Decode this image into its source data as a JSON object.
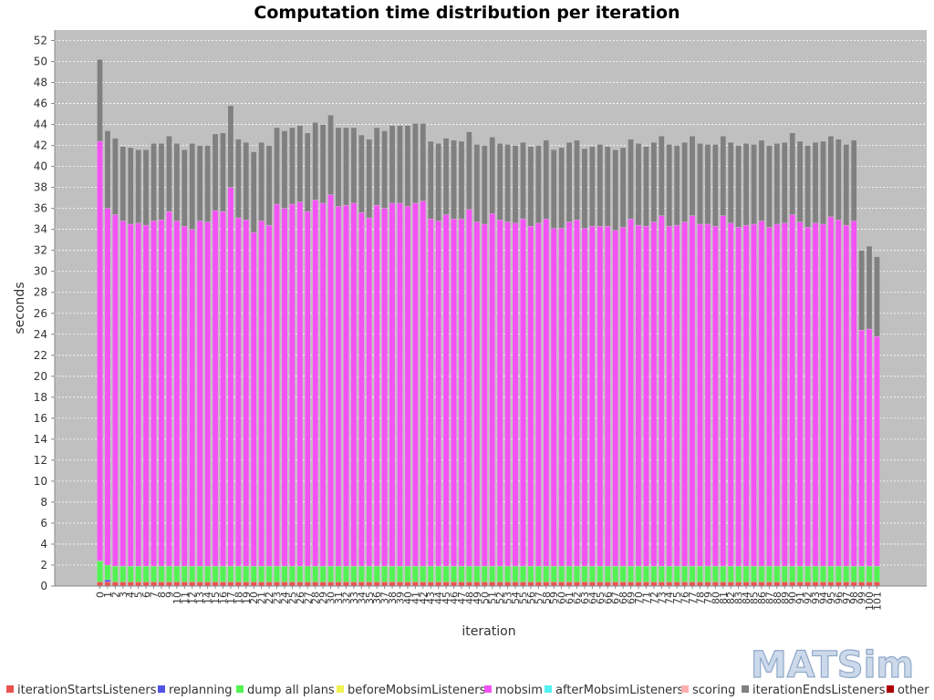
{
  "chart_data": {
    "type": "bar",
    "stacked": true,
    "title": "Computation time distribution per iteration",
    "xlabel": "iteration",
    "ylabel": "seconds",
    "ylim": [
      0,
      53
    ],
    "yticks": [
      0,
      2,
      4,
      6,
      8,
      10,
      12,
      14,
      16,
      18,
      20,
      22,
      24,
      26,
      28,
      30,
      32,
      34,
      36,
      38,
      40,
      42,
      44,
      46,
      48,
      50,
      52
    ],
    "grid": true,
    "legend_position": "bottom",
    "logo": "MATSim",
    "categories": [
      "0",
      "1",
      "2",
      "3",
      "4",
      "5",
      "6",
      "7",
      "8",
      "9",
      "10",
      "11",
      "12",
      "13",
      "14",
      "15",
      "16",
      "17",
      "18",
      "19",
      "20",
      "21",
      "22",
      "23",
      "24",
      "25",
      "26",
      "27",
      "28",
      "29",
      "30",
      "31",
      "32",
      "33",
      "34",
      "35",
      "36",
      "37",
      "38",
      "39",
      "40",
      "41",
      "42",
      "43",
      "44",
      "45",
      "46",
      "47",
      "48",
      "49",
      "50",
      "51",
      "52",
      "53",
      "54",
      "55",
      "56",
      "57",
      "58",
      "59",
      "60",
      "61",
      "62",
      "63",
      "64",
      "65",
      "66",
      "67",
      "68",
      "69",
      "70",
      "71",
      "72",
      "73",
      "74",
      "75",
      "76",
      "77",
      "78",
      "79",
      "80",
      "81",
      "82",
      "83",
      "84",
      "85",
      "86",
      "87",
      "88",
      "89",
      "90",
      "91",
      "92",
      "93",
      "94",
      "95",
      "96",
      "97",
      "98",
      "99",
      "100",
      "101"
    ],
    "series": [
      {
        "name": "iterationStartsListeners",
        "color": "#e8534f",
        "values": [
          0.4,
          0.4,
          0.4,
          0.4,
          0.4,
          0.4,
          0.4,
          0.4,
          0.4,
          0.4,
          0.4,
          0.4,
          0.4,
          0.4,
          0.4,
          0.4,
          0.4,
          0.4,
          0.4,
          0.4,
          0.4,
          0.4,
          0.4,
          0.4,
          0.4,
          0.4,
          0.4,
          0.4,
          0.4,
          0.4,
          0.4,
          0.4,
          0.4,
          0.4,
          0.4,
          0.4,
          0.4,
          0.4,
          0.4,
          0.4,
          0.4,
          0.4,
          0.4,
          0.4,
          0.4,
          0.4,
          0.4,
          0.4,
          0.4,
          0.4,
          0.4,
          0.4,
          0.4,
          0.4,
          0.4,
          0.4,
          0.4,
          0.4,
          0.4,
          0.4,
          0.4,
          0.4,
          0.4,
          0.4,
          0.4,
          0.4,
          0.4,
          0.4,
          0.4,
          0.4,
          0.4,
          0.4,
          0.4,
          0.4,
          0.4,
          0.4,
          0.4,
          0.4,
          0.4,
          0.4,
          0.4,
          0.4,
          0.4,
          0.4,
          0.4,
          0.4,
          0.4,
          0.4,
          0.4,
          0.4,
          0.4,
          0.4,
          0.4,
          0.4,
          0.4,
          0.4,
          0.4,
          0.4,
          0.4,
          0.4,
          0.4,
          0.4
        ]
      },
      {
        "name": "replanning",
        "color": "#5353e8",
        "values": [
          0,
          0.2,
          0,
          0,
          0,
          0,
          0,
          0,
          0,
          0,
          0,
          0,
          0,
          0,
          0,
          0,
          0,
          0,
          0,
          0,
          0,
          0,
          0,
          0,
          0,
          0,
          0,
          0,
          0,
          0,
          0,
          0,
          0,
          0,
          0,
          0,
          0,
          0,
          0,
          0,
          0,
          0,
          0,
          0,
          0,
          0,
          0,
          0,
          0,
          0,
          0,
          0,
          0,
          0,
          0,
          0,
          0,
          0,
          0,
          0,
          0,
          0,
          0,
          0,
          0,
          0,
          0,
          0,
          0,
          0,
          0,
          0,
          0,
          0,
          0,
          0,
          0,
          0,
          0,
          0,
          0,
          0,
          0,
          0,
          0,
          0,
          0,
          0,
          0,
          0,
          0,
          0,
          0,
          0,
          0,
          0,
          0,
          0,
          0,
          0,
          0,
          0
        ]
      },
      {
        "name": "dump all plans",
        "color": "#53f253",
        "values": [
          2.0,
          1.4,
          1.5,
          1.5,
          1.5,
          1.5,
          1.5,
          1.5,
          1.5,
          1.5,
          1.5,
          1.5,
          1.5,
          1.5,
          1.5,
          1.5,
          1.5,
          1.5,
          1.5,
          1.5,
          1.5,
          1.5,
          1.5,
          1.5,
          1.5,
          1.5,
          1.5,
          1.5,
          1.5,
          1.5,
          1.5,
          1.5,
          1.5,
          1.5,
          1.5,
          1.5,
          1.5,
          1.5,
          1.5,
          1.5,
          1.5,
          1.5,
          1.5,
          1.5,
          1.5,
          1.5,
          1.5,
          1.5,
          1.5,
          1.5,
          1.5,
          1.5,
          1.5,
          1.5,
          1.5,
          1.5,
          1.5,
          1.5,
          1.5,
          1.5,
          1.5,
          1.5,
          1.5,
          1.5,
          1.5,
          1.5,
          1.5,
          1.5,
          1.5,
          1.5,
          1.5,
          1.5,
          1.5,
          1.5,
          1.5,
          1.5,
          1.5,
          1.5,
          1.5,
          1.5,
          1.5,
          1.5,
          1.5,
          1.5,
          1.5,
          1.5,
          1.5,
          1.5,
          1.5,
          1.5,
          1.5,
          1.5,
          1.5,
          1.5,
          1.5,
          1.5,
          1.5,
          1.5,
          1.5,
          1.5,
          1.5,
          1.5
        ]
      },
      {
        "name": "beforeMobsimListeners",
        "color": "#f2f253",
        "values": [
          0,
          0,
          0,
          0,
          0,
          0,
          0,
          0,
          0,
          0,
          0,
          0,
          0,
          0,
          0,
          0,
          0,
          0,
          0,
          0,
          0,
          0,
          0,
          0,
          0,
          0,
          0,
          0,
          0,
          0,
          0,
          0,
          0,
          0,
          0,
          0,
          0,
          0,
          0,
          0,
          0,
          0,
          0,
          0,
          0,
          0,
          0,
          0,
          0,
          0,
          0,
          0,
          0,
          0,
          0,
          0,
          0,
          0,
          0,
          0,
          0,
          0,
          0,
          0,
          0,
          0,
          0,
          0,
          0,
          0,
          0,
          0,
          0,
          0,
          0,
          0,
          0,
          0,
          0,
          0,
          0,
          0,
          0,
          0,
          0,
          0,
          0,
          0,
          0,
          0,
          0,
          0,
          0,
          0,
          0,
          0,
          0,
          0,
          0,
          0,
          0,
          0
        ]
      },
      {
        "name": "mobsim",
        "color": "#f253f2",
        "values": [
          40.0,
          34.0,
          33.5,
          32.9,
          32.6,
          32.7,
          32.5,
          32.9,
          33.0,
          33.8,
          32.9,
          32.4,
          32.1,
          32.9,
          32.8,
          33.9,
          33.8,
          36.1,
          33.2,
          33.0,
          31.8,
          32.9,
          32.5,
          34.5,
          34.1,
          34.5,
          34.7,
          33.8,
          34.9,
          34.6,
          35.4,
          34.3,
          34.4,
          34.6,
          33.7,
          33.2,
          34.4,
          34.1,
          34.6,
          34.6,
          34.3,
          34.6,
          34.8,
          33.1,
          32.9,
          33.5,
          33.1,
          33.1,
          34.0,
          32.8,
          32.6,
          33.6,
          33.0,
          32.8,
          32.7,
          33.1,
          32.4,
          32.7,
          33.1,
          32.2,
          32.2,
          32.8,
          33.0,
          32.2,
          32.4,
          32.4,
          32.4,
          32.0,
          32.3,
          33.1,
          32.5,
          32.4,
          32.8,
          33.4,
          32.4,
          32.5,
          32.8,
          33.4,
          32.6,
          32.6,
          32.4,
          33.4,
          32.7,
          32.3,
          32.5,
          32.6,
          32.9,
          32.3,
          32.6,
          32.7,
          33.5,
          32.8,
          32.3,
          32.7,
          32.6,
          33.3,
          33.0,
          32.5,
          32.9,
          22.5,
          22.6,
          21.9
        ]
      },
      {
        "name": "afterMobsimListeners",
        "color": "#53f2f2",
        "values": [
          0,
          0,
          0,
          0,
          0,
          0,
          0,
          0,
          0,
          0,
          0,
          0,
          0,
          0,
          0,
          0,
          0,
          0,
          0,
          0,
          0,
          0,
          0,
          0,
          0,
          0,
          0,
          0,
          0,
          0,
          0,
          0,
          0,
          0,
          0,
          0,
          0,
          0,
          0,
          0,
          0,
          0,
          0,
          0,
          0,
          0,
          0,
          0,
          0,
          0,
          0,
          0,
          0,
          0,
          0,
          0,
          0,
          0,
          0,
          0,
          0,
          0,
          0,
          0,
          0,
          0,
          0,
          0,
          0,
          0,
          0,
          0,
          0,
          0,
          0,
          0,
          0,
          0,
          0,
          0,
          0,
          0,
          0,
          0,
          0,
          0,
          0,
          0,
          0,
          0,
          0,
          0,
          0,
          0,
          0,
          0,
          0,
          0,
          0,
          0,
          0,
          0
        ]
      },
      {
        "name": "scoring",
        "color": "#ffafaf",
        "values": [
          0,
          0,
          0,
          0,
          0,
          0,
          0,
          0,
          0,
          0,
          0,
          0,
          0,
          0,
          0,
          0,
          0,
          0,
          0,
          0,
          0,
          0,
          0,
          0,
          0,
          0,
          0,
          0,
          0,
          0,
          0,
          0,
          0,
          0,
          0,
          0,
          0,
          0,
          0,
          0,
          0,
          0,
          0,
          0,
          0,
          0,
          0,
          0,
          0,
          0,
          0,
          0,
          0,
          0,
          0,
          0,
          0,
          0,
          0,
          0,
          0,
          0,
          0,
          0,
          0,
          0,
          0,
          0,
          0,
          0,
          0,
          0,
          0,
          0,
          0,
          0,
          0,
          0,
          0,
          0,
          0,
          0,
          0,
          0,
          0,
          0,
          0,
          0,
          0,
          0,
          0,
          0,
          0,
          0,
          0,
          0,
          0,
          0,
          0,
          0,
          0,
          0
        ]
      },
      {
        "name": "iterationEndsListeners",
        "color": "#808080",
        "values": [
          7.8,
          7.4,
          7.3,
          7.1,
          7.3,
          7.0,
          7.2,
          7.4,
          7.3,
          7.2,
          7.4,
          7.3,
          8.2,
          7.2,
          7.3,
          7.3,
          7.5,
          7.8,
          7.5,
          7.4,
          7.7,
          7.5,
          7.6,
          7.3,
          7.4,
          7.3,
          7.3,
          7.5,
          7.4,
          7.5,
          7.6,
          7.5,
          7.4,
          7.2,
          7.4,
          7.5,
          7.4,
          7.4,
          7.4,
          7.4,
          7.7,
          7.6,
          7.4,
          7.4,
          7.4,
          7.3,
          7.5,
          7.4,
          7.4,
          7.4,
          7.5,
          7.3,
          7.3,
          7.4,
          7.4,
          7.3,
          7.6,
          7.4,
          7.5,
          7.5,
          7.7,
          7.6,
          7.6,
          7.6,
          7.6,
          7.8,
          7.6,
          7.7,
          7.6,
          7.6,
          7.8,
          7.6,
          7.6,
          7.6,
          7.8,
          7.6,
          7.6,
          7.6,
          7.7,
          7.6,
          7.8,
          7.6,
          7.7,
          7.8,
          7.8,
          7.6,
          7.7,
          7.8,
          7.7,
          7.7,
          7.8,
          7.7,
          7.8,
          7.7,
          7.9,
          7.7,
          7.7,
          7.7,
          7.7,
          7.6,
          7.9,
          7.6
        ]
      },
      {
        "name": "other",
        "color": "#af0000",
        "values": [
          0,
          0,
          0,
          0,
          0,
          0,
          0,
          0,
          0,
          0,
          0,
          0,
          0,
          0,
          0,
          0,
          0,
          0,
          0,
          0,
          0,
          0,
          0,
          0,
          0,
          0,
          0,
          0,
          0,
          0,
          0,
          0,
          0,
          0,
          0,
          0,
          0,
          0,
          0,
          0,
          0,
          0,
          0,
          0,
          0,
          0,
          0,
          0,
          0,
          0,
          0,
          0,
          0,
          0,
          0,
          0,
          0,
          0,
          0,
          0,
          0,
          0,
          0,
          0,
          0,
          0,
          0,
          0,
          0,
          0,
          0,
          0,
          0,
          0,
          0,
          0,
          0,
          0,
          0,
          0,
          0,
          0,
          0,
          0,
          0,
          0,
          0,
          0,
          0,
          0,
          0,
          0,
          0,
          0,
          0,
          0,
          0,
          0,
          0,
          0,
          0,
          0
        ]
      }
    ]
  }
}
